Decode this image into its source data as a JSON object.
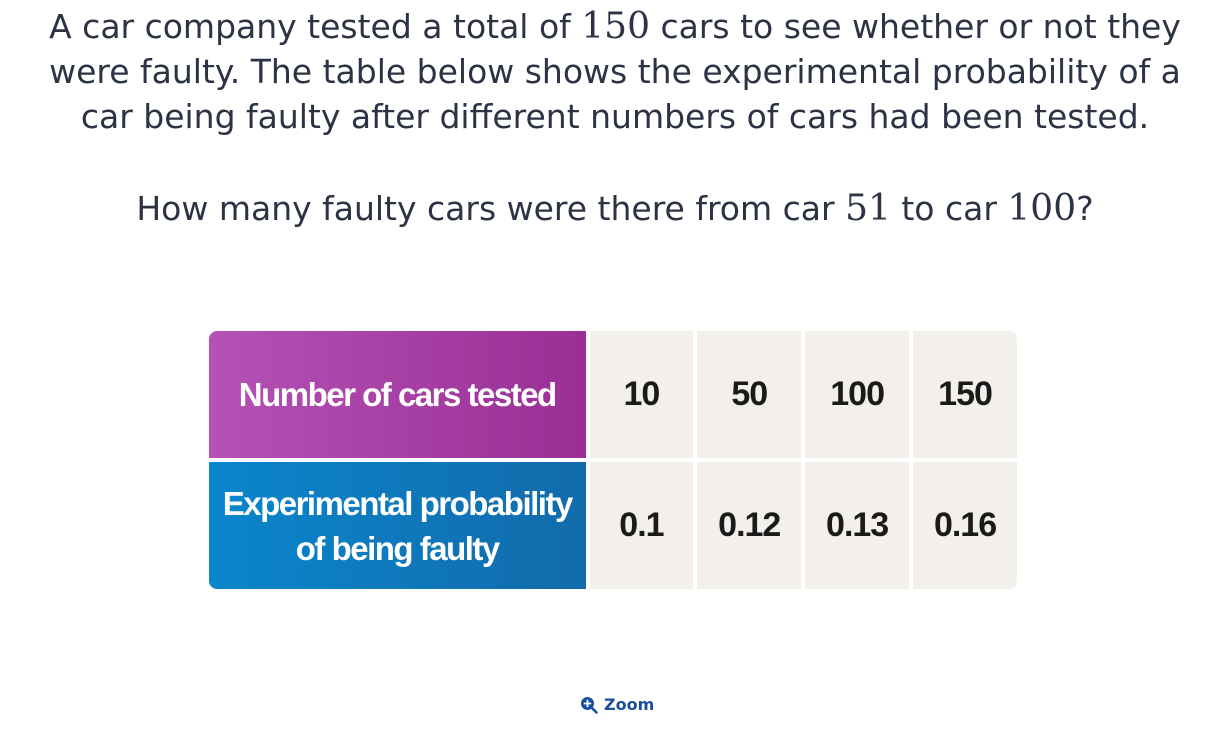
{
  "question": {
    "line1_pre": "A car company tested a total of ",
    "line1_num": "150",
    "line1_post": " cars to see whether or not they",
    "line2": "were faulty. The table below shows the experimental probability of a",
    "line3": "car being faulty after different numbers of cars had been tested."
  },
  "sub_question": {
    "pre": "How many faulty cars were there from car ",
    "num1": "51",
    "mid": " to car ",
    "num2": "100",
    "post": "?"
  },
  "table": {
    "row1_header": "Number of cars tested",
    "row2_header": "Experimental probability of being faulty",
    "cars_tested": [
      "10",
      "50",
      "100",
      "150"
    ],
    "probabilities": [
      "0.1",
      "0.12",
      "0.13",
      "0.16"
    ]
  },
  "zoom": {
    "label": "Zoom",
    "icon": "zoom-in-icon"
  },
  "colors": {
    "header_purple": "#a33ea4",
    "header_blue": "#0b7bbd",
    "cell_bg": "#f3f0eb",
    "zoom_blue": "#1b4f9c"
  }
}
